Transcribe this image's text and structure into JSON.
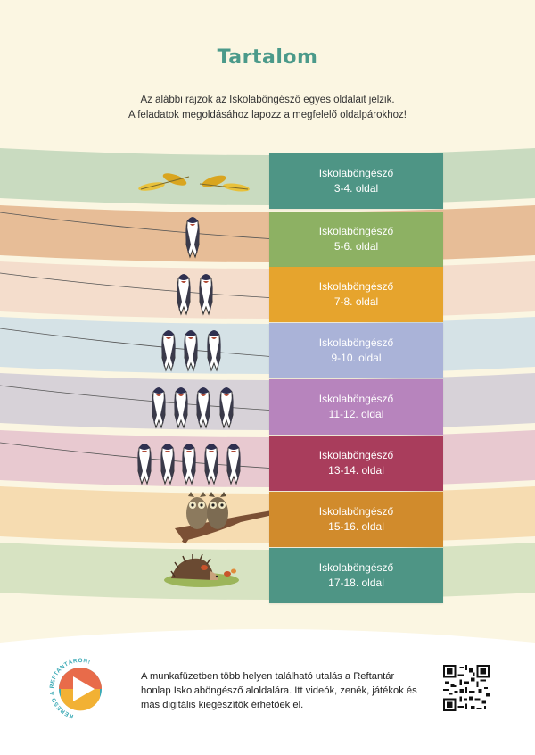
{
  "title": "Tartalom",
  "intro": {
    "line1": "Az alábbi rajzok az Iskolaböngésző egyes oldalait jelzik.",
    "line2": "A feladatok megoldásához lapozz a megfelelő oldalpárokhoz!"
  },
  "entries": [
    {
      "label": "Iskolaböngésző",
      "pages": "3-4. oldal",
      "color": "#4e9585",
      "band": "#c9dbc0",
      "icon": "leaves-icon"
    },
    {
      "label": "Iskolaböngésző",
      "pages": "5-6. oldal",
      "color": "#8db163",
      "band": "#e7bd97",
      "icon": "swallow-icon",
      "birds": 1
    },
    {
      "label": "Iskolaböngésző",
      "pages": "7-8. oldal",
      "color": "#e6a42d",
      "band": "#f4ddcc",
      "icon": "swallow-icon",
      "birds": 2
    },
    {
      "label": "Iskolaböngésző",
      "pages": "9-10. oldal",
      "color": "#aab3d8",
      "band": "#d5e2e6",
      "icon": "swallow-icon",
      "birds": 3
    },
    {
      "label": "Iskolaböngésző",
      "pages": "11-12. oldal",
      "color": "#b784bd",
      "band": "#d7d2d8",
      "icon": "swallow-icon",
      "birds": 4
    },
    {
      "label": "Iskolaböngésző",
      "pages": "13-14. oldal",
      "color": "#a93d5c",
      "band": "#e8c9d0",
      "icon": "swallow-icon",
      "birds": 5
    },
    {
      "label": "Iskolaböngésző",
      "pages": "15-16. oldal",
      "color": "#d18b2c",
      "band": "#f6dcb1",
      "icon": "owl-icon"
    },
    {
      "label": "Iskolaböngésző",
      "pages": "17-18. oldal",
      "color": "#4e9585",
      "band": "#d7e3c2",
      "icon": "hedgehog-icon"
    }
  ],
  "footer": {
    "text": "A munkafüzetben több helyen található utalás a Reftantár honlap Iskolaböngésző aloldalára. Itt videók, zenék, játékok és más digitális kiegészítők érhetőek el.",
    "badge_text": "KERESD A REFTANTÁRON!"
  }
}
